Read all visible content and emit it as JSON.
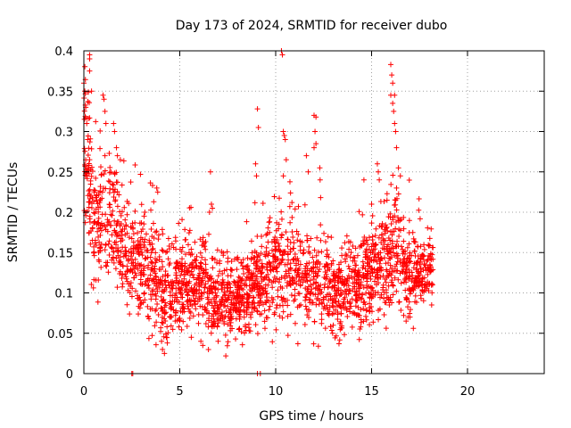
{
  "chart_data": {
    "type": "scatter",
    "title": "Day 173 of 2024, SRMTID for receiver dubo",
    "xlabel": "GPS time / hours",
    "ylabel": "SRMTID / TECUs",
    "xlim": [
      0,
      24
    ],
    "ylim": [
      0,
      0.4
    ],
    "grid": true,
    "marker": "+",
    "color": "#ff0000",
    "x_ticks": [
      0,
      5,
      10,
      15,
      20
    ],
    "y_ticks": [
      0,
      0.05,
      0.1,
      0.15,
      0.2,
      0.25,
      0.3,
      0.35,
      0.4
    ],
    "x_tick_labels": [
      "0",
      "5",
      "10",
      "15",
      "20"
    ],
    "y_tick_labels": [
      "0",
      "0.05",
      "0.1",
      "0.15",
      "0.2",
      "0.25",
      "0.3",
      "0.35",
      "0.4"
    ],
    "series": [
      {
        "name": "SRMTID",
        "x_range": [
          0,
          18.2
        ],
        "profile": [
          {
            "t": 0.0,
            "center": 0.3,
            "spread": 0.06
          },
          {
            "t": 0.5,
            "center": 0.18,
            "spread": 0.05
          },
          {
            "t": 1.0,
            "center": 0.19,
            "spread": 0.05
          },
          {
            "t": 1.5,
            "center": 0.2,
            "spread": 0.05
          },
          {
            "t": 2.0,
            "center": 0.15,
            "spread": 0.04
          },
          {
            "t": 3.0,
            "center": 0.14,
            "spread": 0.04
          },
          {
            "t": 4.0,
            "center": 0.1,
            "spread": 0.04
          },
          {
            "t": 5.0,
            "center": 0.11,
            "spread": 0.035
          },
          {
            "t": 6.0,
            "center": 0.11,
            "spread": 0.035
          },
          {
            "t": 7.0,
            "center": 0.09,
            "spread": 0.03
          },
          {
            "t": 8.0,
            "center": 0.09,
            "spread": 0.03
          },
          {
            "t": 9.0,
            "center": 0.11,
            "spread": 0.035
          },
          {
            "t": 10.0,
            "center": 0.13,
            "spread": 0.04
          },
          {
            "t": 11.0,
            "center": 0.13,
            "spread": 0.04
          },
          {
            "t": 12.0,
            "center": 0.12,
            "spread": 0.04
          },
          {
            "t": 13.0,
            "center": 0.1,
            "spread": 0.035
          },
          {
            "t": 14.0,
            "center": 0.11,
            "spread": 0.035
          },
          {
            "t": 15.0,
            "center": 0.12,
            "spread": 0.04
          },
          {
            "t": 16.0,
            "center": 0.15,
            "spread": 0.045
          },
          {
            "t": 17.0,
            "center": 0.12,
            "spread": 0.035
          },
          {
            "t": 18.0,
            "center": 0.13,
            "spread": 0.025
          },
          {
            "t": 18.2,
            "center": 0.13,
            "spread": 0.025
          }
        ],
        "highlight_points": [
          {
            "x": 0.0,
            "y": 0.36
          },
          {
            "x": 0.05,
            "y": 0.35
          },
          {
            "x": 0.1,
            "y": 0.33
          },
          {
            "x": 0.15,
            "y": 0.31
          },
          {
            "x": 0.2,
            "y": 0.29
          },
          {
            "x": 0.3,
            "y": 0.39
          },
          {
            "x": 0.3,
            "y": 0.395
          },
          {
            "x": 0.3,
            "y": 0.375
          },
          {
            "x": 0.4,
            "y": 0.35
          },
          {
            "x": 0.3,
            "y": 0.265
          },
          {
            "x": 0.15,
            "y": 0.245
          },
          {
            "x": 1.0,
            "y": 0.345
          },
          {
            "x": 1.05,
            "y": 0.34
          },
          {
            "x": 1.1,
            "y": 0.325
          },
          {
            "x": 1.15,
            "y": 0.31
          },
          {
            "x": 1.1,
            "y": 0.27
          },
          {
            "x": 1.55,
            "y": 0.31
          },
          {
            "x": 1.6,
            "y": 0.3
          },
          {
            "x": 1.7,
            "y": 0.28
          },
          {
            "x": 1.75,
            "y": 0.27
          },
          {
            "x": 1.9,
            "y": 0.265
          },
          {
            "x": 2.5,
            "y": 0.0
          },
          {
            "x": 2.55,
            "y": 0.0
          },
          {
            "x": 2.95,
            "y": 0.247
          },
          {
            "x": 3.8,
            "y": 0.23
          },
          {
            "x": 3.85,
            "y": 0.225
          },
          {
            "x": 4.1,
            "y": 0.03
          },
          {
            "x": 4.2,
            "y": 0.025
          },
          {
            "x": 4.05,
            "y": 0.04
          },
          {
            "x": 4.3,
            "y": 0.045
          },
          {
            "x": 4.35,
            "y": 0.038
          },
          {
            "x": 6.1,
            "y": 0.04
          },
          {
            "x": 6.2,
            "y": 0.035
          },
          {
            "x": 6.6,
            "y": 0.25
          },
          {
            "x": 6.65,
            "y": 0.21
          },
          {
            "x": 6.7,
            "y": 0.205
          },
          {
            "x": 6.55,
            "y": 0.2
          },
          {
            "x": 7.4,
            "y": 0.022
          },
          {
            "x": 7.0,
            "y": 0.04
          },
          {
            "x": 9.05,
            "y": 0.328
          },
          {
            "x": 9.1,
            "y": 0.305
          },
          {
            "x": 8.95,
            "y": 0.26
          },
          {
            "x": 9.0,
            "y": 0.245
          },
          {
            "x": 9.05,
            "y": 0.0
          },
          {
            "x": 9.2,
            "y": 0.0
          },
          {
            "x": 10.3,
            "y": 0.4
          },
          {
            "x": 10.35,
            "y": 0.395
          },
          {
            "x": 10.4,
            "y": 0.3
          },
          {
            "x": 10.45,
            "y": 0.295
          },
          {
            "x": 10.5,
            "y": 0.29
          },
          {
            "x": 10.55,
            "y": 0.265
          },
          {
            "x": 10.4,
            "y": 0.245
          },
          {
            "x": 12.0,
            "y": 0.32
          },
          {
            "x": 12.1,
            "y": 0.318
          },
          {
            "x": 12.05,
            "y": 0.3
          },
          {
            "x": 12.1,
            "y": 0.285
          },
          {
            "x": 12.0,
            "y": 0.28
          },
          {
            "x": 11.6,
            "y": 0.27
          },
          {
            "x": 11.7,
            "y": 0.25
          },
          {
            "x": 12.3,
            "y": 0.255
          },
          {
            "x": 13.3,
            "y": 0.037
          },
          {
            "x": 13.0,
            "y": 0.06
          },
          {
            "x": 15.3,
            "y": 0.26
          },
          {
            "x": 15.35,
            "y": 0.25
          },
          {
            "x": 15.4,
            "y": 0.24
          },
          {
            "x": 14.6,
            "y": 0.24
          },
          {
            "x": 15.0,
            "y": 0.21
          },
          {
            "x": 16.0,
            "y": 0.383
          },
          {
            "x": 16.05,
            "y": 0.37
          },
          {
            "x": 16.1,
            "y": 0.36
          },
          {
            "x": 16.0,
            "y": 0.345
          },
          {
            "x": 16.2,
            "y": 0.345
          },
          {
            "x": 16.1,
            "y": 0.335
          },
          {
            "x": 16.15,
            "y": 0.325
          },
          {
            "x": 16.2,
            "y": 0.31
          },
          {
            "x": 16.25,
            "y": 0.3
          },
          {
            "x": 16.3,
            "y": 0.28
          },
          {
            "x": 16.4,
            "y": 0.255
          },
          {
            "x": 16.5,
            "y": 0.245
          },
          {
            "x": 16.3,
            "y": 0.23
          },
          {
            "x": 16.8,
            "y": 0.065
          },
          {
            "x": 16.9,
            "y": 0.07
          },
          {
            "x": 17.0,
            "y": 0.07
          }
        ]
      }
    ]
  }
}
